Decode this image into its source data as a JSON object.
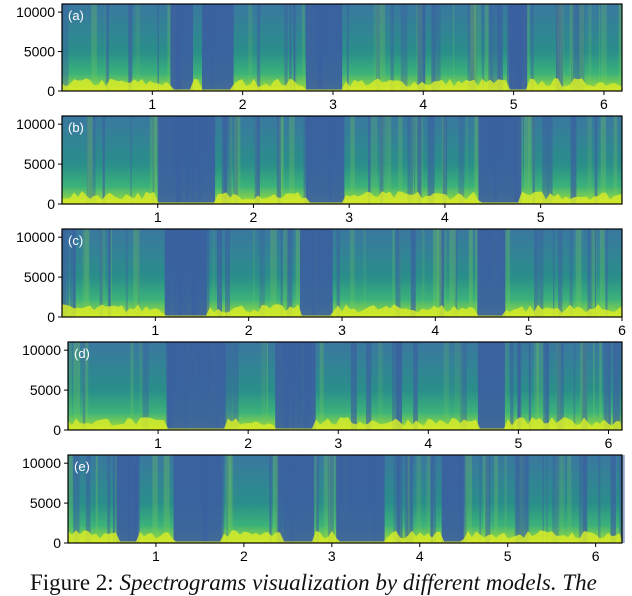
{
  "figure": {
    "panels": [
      {
        "label": "(a)"
      },
      {
        "label": "(b)"
      },
      {
        "label": "(c)"
      },
      {
        "label": "(d)"
      },
      {
        "label": "(e)"
      }
    ],
    "caption_prefix": "Figure 2:",
    "caption_text": "Spectrograms visualization by different models. The"
  },
  "colors": {
    "low": "#3b5fa0",
    "mid": "#1f9e89",
    "high": "#7ad151",
    "peak": "#d4ea2a"
  },
  "chart_data": [
    {
      "type": "heatmap",
      "label": "(a)",
      "x_ticks": [
        1,
        2,
        3,
        4,
        5,
        6
      ],
      "y_ticks": [
        0,
        5000,
        10000
      ],
      "xlim": [
        0,
        6.2
      ],
      "ylim": [
        0,
        11025
      ],
      "silence_segments": [
        [
          1.2,
          1.45
        ],
        [
          1.55,
          1.9
        ],
        [
          2.7,
          3.1
        ],
        [
          4.95,
          5.15
        ]
      ]
    },
    {
      "type": "heatmap",
      "label": "(b)",
      "x_ticks": [
        1,
        2,
        3,
        4,
        5
      ],
      "y_ticks": [
        0,
        5000,
        10000
      ],
      "xlim": [
        0,
        5.85
      ],
      "ylim": [
        0,
        11025
      ],
      "silence_segments": [
        [
          1.0,
          1.6
        ],
        [
          2.55,
          2.95
        ],
        [
          4.35,
          4.8
        ]
      ]
    },
    {
      "type": "heatmap",
      "label": "(c)",
      "x_ticks": [
        1,
        2,
        3,
        4,
        5,
        6
      ],
      "y_ticks": [
        0,
        5000,
        10000
      ],
      "xlim": [
        0,
        6.0
      ],
      "ylim": [
        0,
        11025
      ],
      "silence_segments": [
        [
          1.1,
          1.55
        ],
        [
          2.55,
          2.9
        ],
        [
          4.45,
          4.75
        ]
      ]
    },
    {
      "type": "heatmap",
      "label": "(d)",
      "x_ticks": [
        1,
        2,
        3,
        4,
        5,
        6
      ],
      "y_ticks": [
        0,
        5000,
        10000
      ],
      "xlim": [
        0,
        6.15
      ],
      "ylim": [
        0,
        11025
      ],
      "silence_segments": [
        [
          1.1,
          1.75
        ],
        [
          2.3,
          2.75
        ],
        [
          4.55,
          4.85
        ]
      ]
    },
    {
      "type": "heatmap",
      "label": "(e)",
      "x_ticks": [
        1,
        2,
        3,
        4,
        5,
        6
      ],
      "y_ticks": [
        0,
        5000,
        10000
      ],
      "xlim": [
        0,
        6.3
      ],
      "ylim": [
        0,
        11025
      ],
      "silence_segments": [
        [
          0.55,
          0.8
        ],
        [
          1.2,
          1.75
        ],
        [
          2.45,
          2.8
        ],
        [
          3.05,
          3.6
        ],
        [
          4.25,
          4.5
        ]
      ]
    }
  ]
}
